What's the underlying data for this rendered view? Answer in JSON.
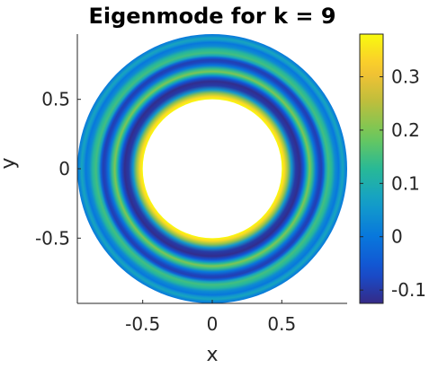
{
  "chart_data": {
    "type": "heatmap",
    "title": "Eigenmode for k = 9",
    "xlabel": "x",
    "ylabel": "y",
    "xlim": [
      -0.97,
      0.97
    ],
    "ylim": [
      -0.97,
      0.97
    ],
    "x_ticks": [
      -0.5,
      0,
      0.5
    ],
    "y_ticks": [
      -0.5,
      0,
      0.5
    ],
    "x_tick_labels": [
      "-0.5",
      "0",
      "0.5"
    ],
    "y_tick_labels": [
      "-0.5",
      "0",
      "0.5"
    ],
    "domain": {
      "shape": "annulus",
      "inner_radius": 0.5,
      "outer_radius": 0.97
    },
    "radial_profile": {
      "r": [
        0.5,
        0.52,
        0.545,
        0.57,
        0.6,
        0.63,
        0.655,
        0.67,
        0.685,
        0.7,
        0.72,
        0.745,
        0.77,
        0.785,
        0.8,
        0.815,
        0.835,
        0.86,
        0.885,
        0.91,
        0.925,
        0.94,
        0.955,
        0.97
      ],
      "value": [
        0.38,
        0.34,
        0.22,
        0.05,
        -0.1,
        -0.12,
        -0.06,
        0.03,
        0.13,
        0.2,
        0.14,
        0.0,
        -0.08,
        -0.09,
        -0.04,
        0.08,
        0.15,
        0.12,
        0.03,
        0.0,
        0.05,
        0.08,
        0.03,
        0.0
      ]
    },
    "colorbar": {
      "range": [
        -0.125,
        0.38
      ],
      "ticks": [
        -0.1,
        0,
        0.1,
        0.2,
        0.3
      ],
      "tick_labels": [
        "-0.1",
        "0",
        "0.1",
        "0.2",
        "0.3"
      ],
      "colormap": "parula"
    },
    "grid": false
  }
}
